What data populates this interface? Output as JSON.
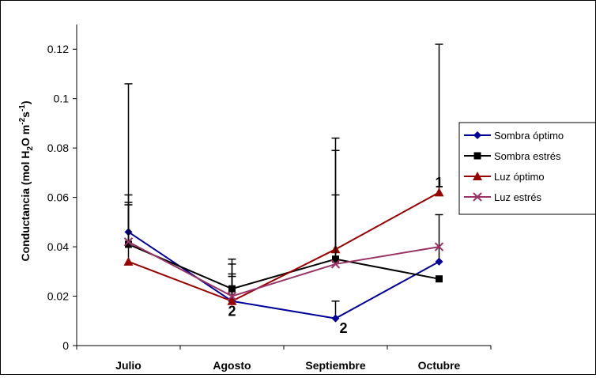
{
  "chart_data": {
    "type": "line",
    "categories": [
      "Julio",
      "Agosto",
      "Septiembre",
      "Octubre"
    ],
    "ylabel": {
      "main": "Conductancia (mol H",
      "sub1": "2",
      "mid": "O m",
      "sup1": "-2",
      "mid2": "s",
      "sup2": "-1",
      "end": ")"
    },
    "ylim": [
      0,
      0.13
    ],
    "yticks": [
      "0",
      "0.02",
      "0.04",
      "0.06",
      "0.08",
      "0.1",
      "0.12"
    ],
    "ytick_values": [
      0,
      0.02,
      0.04,
      0.06,
      0.08,
      0.1,
      0.12
    ],
    "grid": false,
    "legend_position": "right",
    "series": [
      {
        "name": "Sombra óptimo",
        "color": "#000099",
        "marker": "diamond",
        "values": [
          0.046,
          0.018,
          0.011,
          0.034
        ],
        "error_top": [
          0.106,
          0.035,
          0.018,
          0.053
        ]
      },
      {
        "name": "Sombra estrés",
        "color": "#000000",
        "marker": "square",
        "values": [
          0.041,
          0.023,
          0.035,
          0.027
        ],
        "error_top": [
          0.061,
          0.033,
          0.079,
          null
        ]
      },
      {
        "name": "Luz óptimo",
        "color": "#990000",
        "marker": "triangle",
        "values": [
          0.034,
          0.018,
          0.039,
          0.062
        ],
        "error_top": [
          0.057,
          0.029,
          0.084,
          0.122
        ]
      },
      {
        "name": "Luz estrés",
        "color": "#993366",
        "marker": "x",
        "values": [
          0.042,
          0.02,
          0.033,
          0.04
        ],
        "error_top": [
          0.058,
          0.028,
          0.061,
          null
        ]
      }
    ],
    "annotations": [
      {
        "text": "2",
        "category": "Agosto",
        "y": 0.014
      },
      {
        "text": "2",
        "category": "Septiembre",
        "y": 0.007
      },
      {
        "text": "1",
        "category": "Octubre",
        "y": 0.066
      }
    ]
  }
}
